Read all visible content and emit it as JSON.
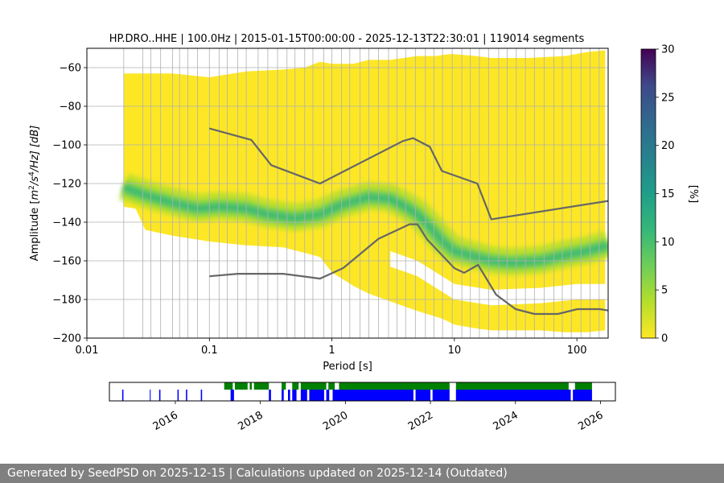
{
  "chart_data": {
    "type": "heatmap",
    "title": "HP.DRO..HHE | 100.0Hz | 2015-01-15T00:00:00 - 2025-12-13T22:30:01 | 119014 segments",
    "xlabel": "Period [s]",
    "ylabel": "Amplitude [m²/s⁴/Hz] [dB]",
    "ylabel_parts": {
      "prefix": "Amplitude [",
      "m": "m",
      "sup2": "2",
      "s": "/s",
      "sup4": "4",
      "hz": "/Hz] [dB]"
    },
    "x_scale": "log",
    "xlim": [
      0.01,
      180
    ],
    "ylim": [
      -200,
      -50
    ],
    "x_ticks": [
      0.01,
      0.1,
      1,
      10,
      100
    ],
    "x_tick_labels": [
      "0.01",
      "0.1",
      "1",
      "10",
      "100"
    ],
    "y_ticks": [
      -200,
      -180,
      -160,
      -140,
      -120,
      -100,
      -80,
      -60
    ],
    "y_tick_labels": [
      "−200",
      "−180",
      "−160",
      "−140",
      "−120",
      "−100",
      "−80",
      "−60"
    ],
    "grid": true,
    "period_gridlines": [
      0.02,
      0.0286,
      0.0333,
      0.04,
      0.05,
      0.0571,
      0.0667,
      0.08,
      0.1,
      0.12,
      0.14,
      0.17,
      0.2,
      0.25,
      0.3,
      0.36,
      0.43,
      0.5,
      0.6,
      0.7,
      0.86,
      1.0,
      1.2,
      1.4,
      1.7,
      2.0,
      2.4,
      2.9,
      3.4,
      4.0,
      4.8,
      5.8,
      6.8,
      8.0,
      9.6,
      11.5,
      13.5,
      16,
      19,
      23,
      27,
      32,
      38,
      45,
      54,
      65,
      76,
      90,
      108,
      128,
      152
    ],
    "colorbar": {
      "label": "[%]",
      "range": [
        0,
        30
      ],
      "ticks": [
        0,
        5,
        10,
        15,
        20,
        25,
        30
      ],
      "tick_labels": [
        "0",
        "5",
        "10",
        "15",
        "20",
        "25",
        "30"
      ],
      "colormap": "viridis"
    },
    "density": {
      "mode_curve": {
        "period": [
          0.02,
          0.03,
          0.05,
          0.08,
          0.12,
          0.2,
          0.3,
          0.5,
          0.8,
          1.2,
          2,
          3,
          4,
          5,
          6,
          8,
          10,
          15,
          20,
          30,
          50,
          80,
          120,
          180
        ],
        "db": [
          -122,
          -126,
          -130,
          -133,
          -132,
          -133,
          -136,
          -138,
          -136,
          -131,
          -127,
          -128,
          -132,
          -136,
          -141,
          -150,
          -155,
          -158,
          -160,
          -161,
          -160,
          -157,
          -155,
          -152
        ]
      },
      "upper_edge": {
        "period": [
          0.02,
          0.05,
          0.1,
          0.2,
          0.4,
          0.6,
          0.8,
          1,
          1.5,
          2,
          3,
          5,
          7,
          9,
          10,
          15,
          20,
          40,
          80,
          120,
          170
        ],
        "db": [
          -63,
          -63,
          -65,
          -62,
          -61,
          -60,
          -57,
          -58,
          -58,
          -56,
          -56,
          -54,
          -54,
          -53,
          -53,
          -54,
          -55,
          -55,
          -54,
          -52,
          -51
        ]
      },
      "lower_edge": {
        "period": [
          0.02,
          0.025,
          0.03,
          0.05,
          0.1,
          0.2,
          0.4,
          0.8,
          1,
          1.5,
          2,
          3,
          5,
          8,
          10,
          15,
          20,
          30,
          50,
          80,
          120,
          170
        ],
        "db": [
          -132,
          -133,
          -144,
          -147,
          -150,
          -152,
          -153,
          -158,
          -166,
          -173,
          -177,
          -181,
          -186,
          -190,
          -193,
          -195,
          -196,
          -196,
          -196,
          -197,
          -197,
          -196
        ]
      },
      "clipped_lower_edge": {
        "period": [
          3,
          5,
          10,
          20,
          50,
          100,
          170
        ],
        "db": [
          -155,
          -160,
          -172,
          -175,
          -174,
          -172,
          -172
        ]
      }
    },
    "series": [
      {
        "name": "NHNM",
        "color": "#666666",
        "period": [
          0.1,
          0.22,
          0.32,
          0.8,
          3.8,
          4.6,
          6.3,
          7.9,
          15.4,
          20,
          180
        ],
        "db": [
          -91.5,
          -97.4,
          -110.5,
          -120.0,
          -98.0,
          -96.5,
          -101.0,
          -113.5,
          -120.0,
          -138.5,
          -129.0
        ]
      },
      {
        "name": "NLNM",
        "color": "#666666",
        "period": [
          0.1,
          0.17,
          0.4,
          0.8,
          1.24,
          2.4,
          4.3,
          5.0,
          6.0,
          10.0,
          12.0,
          15.6,
          21.9,
          31.6,
          45,
          70,
          101,
          154,
          180
        ],
        "db": [
          -168.0,
          -166.7,
          -166.7,
          -169.2,
          -163.7,
          -148.6,
          -141.1,
          -141.1,
          -149.0,
          -163.8,
          -166.2,
          -162.1,
          -177.5,
          -185.0,
          -187.5,
          -187.5,
          -185.0,
          -185.0,
          -185.7
        ]
      }
    ]
  },
  "availability": {
    "x_range": [
      2014.45,
      2026.35
    ],
    "ticks": [
      2016,
      2018,
      2020,
      2022,
      2024,
      2026
    ],
    "tick_labels": [
      "2016",
      "2018",
      "2020",
      "2022",
      "2024",
      "2026"
    ],
    "colors": {
      "green": "#008000",
      "blue": "#0000ff"
    },
    "green_spans": [
      [
        2017.15,
        2017.35
      ],
      [
        2017.4,
        2017.7
      ],
      [
        2017.75,
        2017.8
      ],
      [
        2017.85,
        2018.2
      ],
      [
        2018.5,
        2018.6
      ],
      [
        2018.75,
        2018.9
      ],
      [
        2018.95,
        2019.55
      ],
      [
        2019.6,
        2019.75
      ],
      [
        2019.85,
        2022.45
      ],
      [
        2022.6,
        2025.25
      ],
      [
        2025.4,
        2025.8
      ]
    ],
    "blue_spans": [
      [
        2014.75,
        2014.78
      ],
      [
        2015.4,
        2015.42
      ],
      [
        2015.62,
        2015.65
      ],
      [
        2016.05,
        2016.08
      ],
      [
        2016.25,
        2016.28
      ],
      [
        2016.6,
        2016.63
      ],
      [
        2017.3,
        2017.38
      ],
      [
        2018.2,
        2018.25
      ],
      [
        2018.5,
        2018.55
      ],
      [
        2018.65,
        2018.7
      ],
      [
        2018.75,
        2018.85
      ],
      [
        2018.95,
        2019.1
      ],
      [
        2019.15,
        2019.5
      ],
      [
        2019.55,
        2019.62
      ],
      [
        2019.7,
        2021.6
      ],
      [
        2021.65,
        2022.0
      ],
      [
        2022.05,
        2022.45
      ],
      [
        2022.6,
        2025.3
      ],
      [
        2025.35,
        2025.8
      ]
    ]
  },
  "footer": {
    "text": "Generated by SeedPSD on 2025-12-15 | Calculations updated on 2025-12-14 (Outdated)"
  }
}
